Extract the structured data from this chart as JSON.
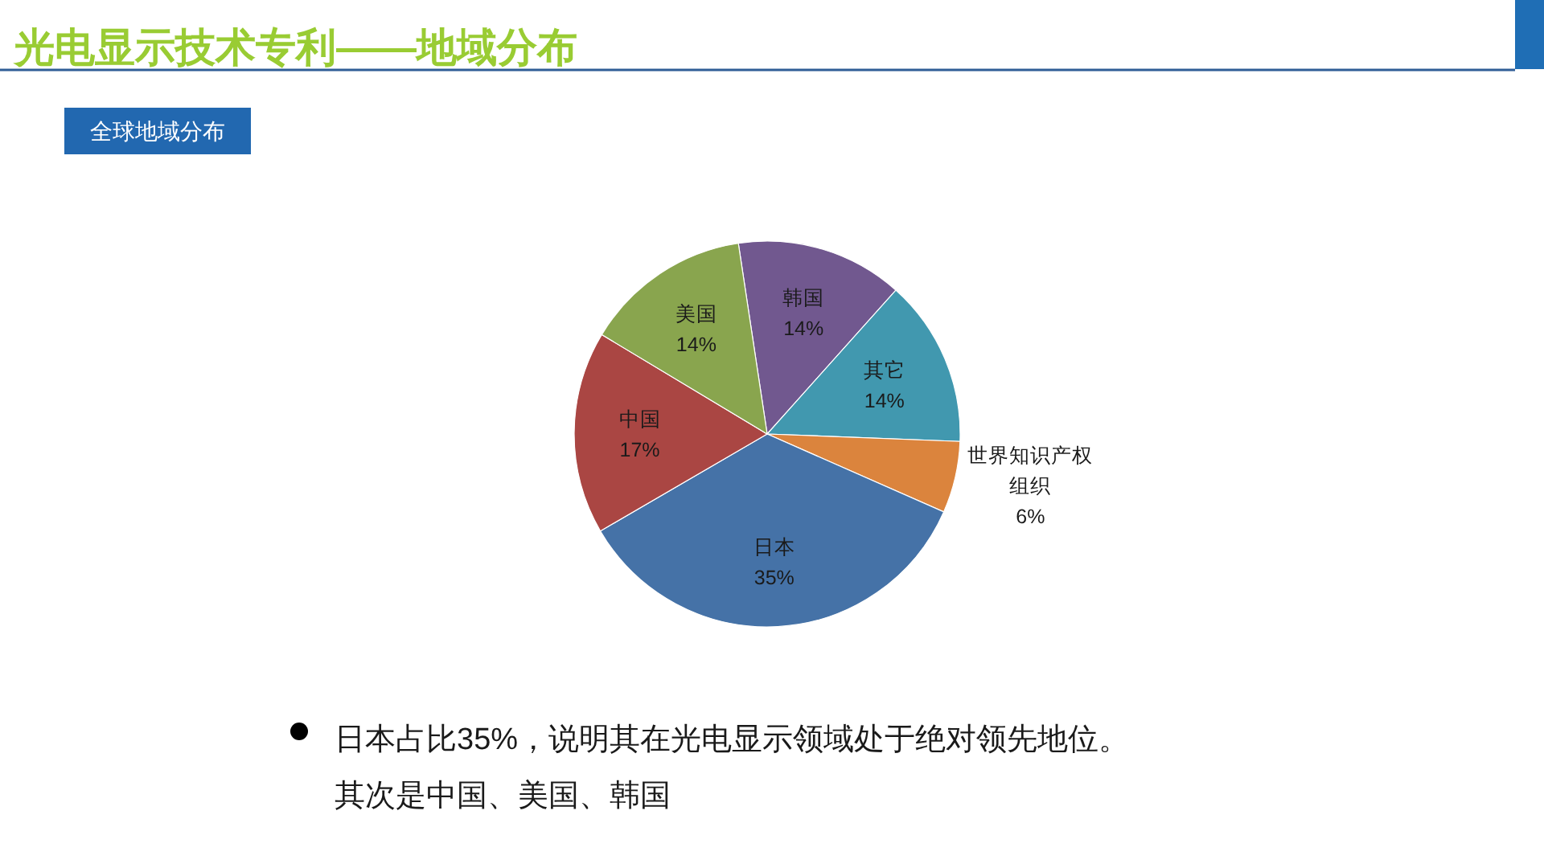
{
  "chart_data": {
    "type": "pie",
    "title": "光电显示技术专利——地域分布",
    "subtitle": "全球地域分布",
    "categories": [
      "韩国",
      "其它",
      "世界知识产权组织",
      "日本",
      "中国",
      "美国"
    ],
    "values": [
      14,
      14,
      6,
      35,
      17,
      14
    ],
    "value_labels": [
      "14%",
      "14%",
      "6%",
      "35%",
      "17%",
      "14%"
    ],
    "colors": [
      "#71588f",
      "#4198af",
      "#db843d",
      "#4572a7",
      "#aa4643",
      "#89a54e"
    ],
    "annotations": [
      "日本占比35%，说明其在光电显示领域处于绝对领先地位。",
      "其次是中国、美国、韩国"
    ]
  }
}
